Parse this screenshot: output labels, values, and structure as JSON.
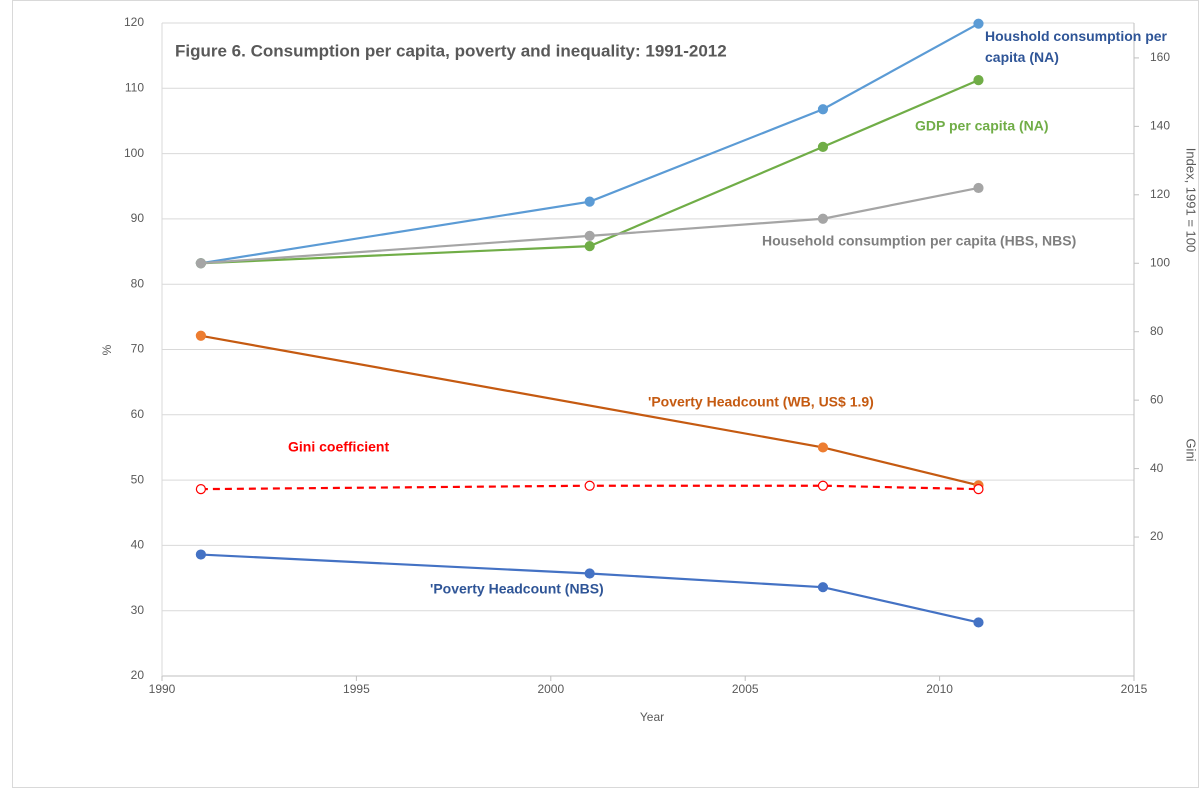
{
  "chart_data": {
    "type": "line",
    "title": "Figure 6. Consumption per capita, poverty and inequality: 1991-2012",
    "x_label": "Year",
    "y_label": "%",
    "y2_labels": [
      "Index, 1991 = 100",
      "Gini"
    ],
    "x": [
      1991,
      2001,
      2007,
      2011
    ],
    "xlim": [
      1990,
      2015
    ],
    "xticks": [
      1990,
      1995,
      2000,
      2005,
      2010,
      2015
    ],
    "ylim": [
      20,
      120
    ],
    "yticks": [
      20,
      30,
      40,
      50,
      60,
      70,
      80,
      90,
      100,
      110,
      120
    ],
    "y2lim": [
      -20.6,
      170.2
    ],
    "y2ticks": [
      20,
      40,
      60,
      80,
      100,
      120,
      140,
      160
    ],
    "grid": true,
    "series": [
      {
        "name": "Houshold consumption per capita (NA)",
        "color": "#5b9bd5",
        "label_color": "#2f5597",
        "axis": "y2",
        "values": [
          100,
          118,
          145,
          170
        ]
      },
      {
        "name": "GDP per capita (NA)",
        "color": "#70ad47",
        "label_color": "#70ad47",
        "axis": "y2",
        "values": [
          100,
          105,
          134,
          153.5
        ]
      },
      {
        "name": "Household consumption per capita (HBS, NBS)",
        "color": "#a5a5a5",
        "label_color": "#7f7f7f",
        "axis": "y2",
        "values": [
          100,
          108,
          113,
          122
        ]
      },
      {
        "name": "'Poverty Headcount (WB, US$ 1.9)",
        "color": "#c55a11",
        "marker_color": "#ed7d31",
        "label_color": "#c55a11",
        "values": [
          72.1,
          null,
          55.0,
          49.2
        ]
      },
      {
        "name": "Gini coefficient",
        "color": "#ff0000",
        "label_color": "#ff0000",
        "axis": "y2",
        "dashed": true,
        "marker": "open",
        "values": [
          34,
          35,
          35,
          34
        ]
      },
      {
        "name": "'Poverty Headcount (NBS)",
        "color": "#4472c4",
        "label_color": "#2f5597",
        "values": [
          38.6,
          35.7,
          33.6,
          28.2
        ]
      }
    ]
  }
}
